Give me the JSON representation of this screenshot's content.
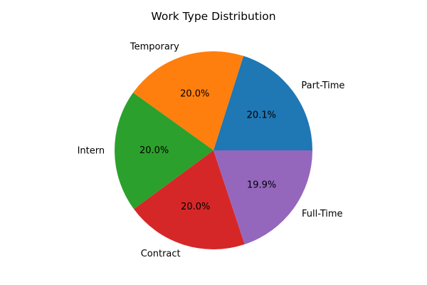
{
  "chart_data": {
    "type": "pie",
    "title": "Work Type Distribution",
    "labels": [
      "Part-Time",
      "Temporary",
      "Intern",
      "Contract",
      "Full-Time"
    ],
    "values": [
      20.1,
      20.0,
      20.0,
      20.0,
      19.9
    ],
    "percent_labels": [
      "20.1%",
      "20.0%",
      "20.0%",
      "20.0%",
      "19.9%"
    ],
    "colors": [
      "#1f77b4",
      "#ff7f0e",
      "#2ca02c",
      "#d62728",
      "#9467bd"
    ],
    "start_angle_deg": 0,
    "direction": "counterclockwise",
    "legend": "none"
  }
}
